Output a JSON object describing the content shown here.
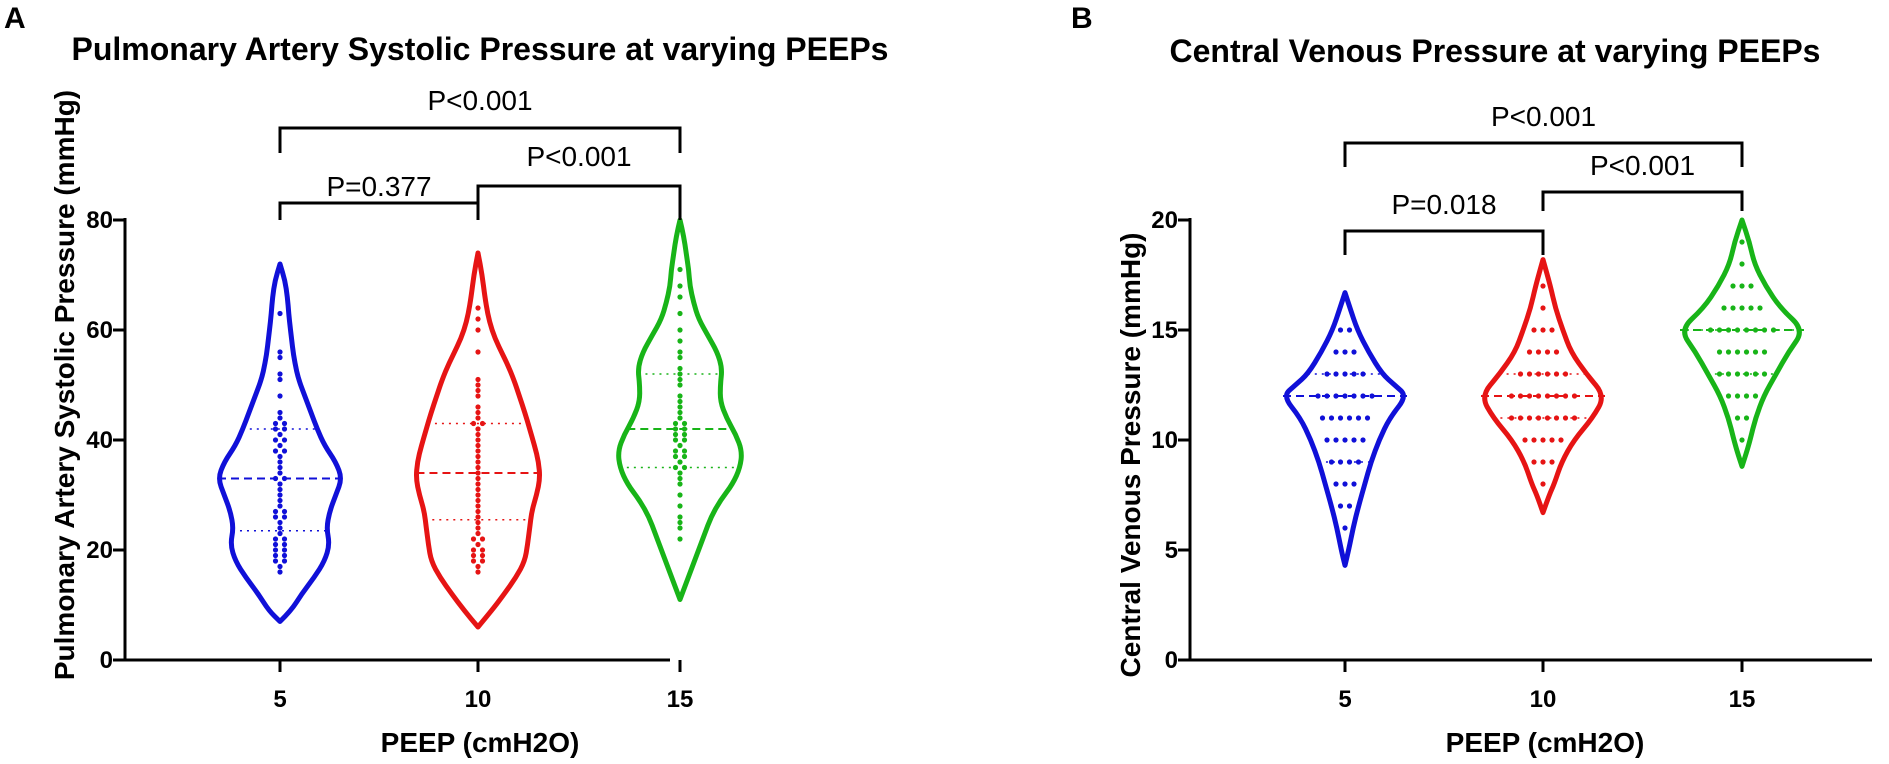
{
  "colors": {
    "blue": "#1010d8",
    "red": "#e61414",
    "green": "#18b418",
    "axis": "#000000"
  },
  "chart_data": [
    {
      "panel": "A",
      "type": "violin",
      "title": "Pulmonary Artery Systolic Pressure at varying PEEPs",
      "xlabel": "PEEP (cmH2O)",
      "ylabel": "Pulmonary Artery Systolic Pressure (mmHg)",
      "ylim": [
        0,
        80
      ],
      "yticks": [
        0,
        20,
        40,
        60,
        80
      ],
      "categories": [
        "5",
        "10",
        "15"
      ],
      "series": [
        {
          "name": "5",
          "color": "blue",
          "median": 33,
          "q1": 23.5,
          "q3": 42,
          "min": 7,
          "max": 72,
          "density": [
            [
              7,
              0
            ],
            [
              9,
              0.18
            ],
            [
              12,
              0.35
            ],
            [
              15,
              0.55
            ],
            [
              18,
              0.72
            ],
            [
              21,
              0.8
            ],
            [
              24,
              0.75
            ],
            [
              27,
              0.8
            ],
            [
              30,
              0.9
            ],
            [
              33,
              1.0
            ],
            [
              36,
              0.9
            ],
            [
              39,
              0.72
            ],
            [
              42,
              0.6
            ],
            [
              45,
              0.5
            ],
            [
              48,
              0.4
            ],
            [
              51,
              0.3
            ],
            [
              54,
              0.24
            ],
            [
              57,
              0.2
            ],
            [
              60,
              0.17
            ],
            [
              63,
              0.14
            ],
            [
              66,
              0.12
            ],
            [
              69,
              0.08
            ],
            [
              72,
              0
            ]
          ],
          "points": [
            16,
            17,
            18,
            18,
            19,
            19,
            20,
            20,
            21,
            21,
            22,
            22,
            23,
            24,
            25,
            26,
            26,
            27,
            27,
            28,
            29,
            30,
            31,
            32,
            33,
            33,
            34,
            35,
            36,
            37,
            38,
            38,
            39,
            40,
            40,
            41,
            42,
            42,
            43,
            43,
            44,
            45,
            48,
            51,
            52,
            55,
            56,
            63
          ]
        },
        {
          "name": "10",
          "color": "red",
          "median": 34,
          "q1": 25.5,
          "q3": 43,
          "min": 6,
          "max": 74,
          "density": [
            [
              6,
              0
            ],
            [
              9,
              0.2
            ],
            [
              12,
              0.38
            ],
            [
              15,
              0.55
            ],
            [
              18,
              0.68
            ],
            [
              21,
              0.72
            ],
            [
              24,
              0.75
            ],
            [
              27,
              0.78
            ],
            [
              30,
              0.85
            ],
            [
              33,
              0.9
            ],
            [
              36,
              0.88
            ],
            [
              39,
              0.82
            ],
            [
              42,
              0.75
            ],
            [
              45,
              0.68
            ],
            [
              48,
              0.6
            ],
            [
              51,
              0.52
            ],
            [
              54,
              0.42
            ],
            [
              57,
              0.3
            ],
            [
              60,
              0.2
            ],
            [
              63,
              0.14
            ],
            [
              66,
              0.1
            ],
            [
              70,
              0.06
            ],
            [
              74,
              0
            ]
          ],
          "points": [
            16,
            17,
            18,
            18,
            19,
            19,
            20,
            20,
            21,
            22,
            22,
            23,
            24,
            25,
            26,
            27,
            28,
            29,
            30,
            31,
            32,
            33,
            34,
            35,
            36,
            37,
            38,
            39,
            40,
            41,
            42,
            43,
            43,
            44,
            45,
            46,
            48,
            49,
            50,
            51,
            56,
            60,
            62,
            64
          ]
        },
        {
          "name": "15",
          "color": "green",
          "median": 42,
          "q1": 35,
          "q3": 52,
          "min": 11,
          "max": 80,
          "density": [
            [
              11,
              0
            ],
            [
              14,
              0.1
            ],
            [
              17,
              0.2
            ],
            [
              20,
              0.3
            ],
            [
              23,
              0.4
            ],
            [
              26,
              0.5
            ],
            [
              29,
              0.65
            ],
            [
              32,
              0.85
            ],
            [
              35,
              0.97
            ],
            [
              38,
              1.0
            ],
            [
              41,
              0.9
            ],
            [
              44,
              0.75
            ],
            [
              47,
              0.65
            ],
            [
              50,
              0.65
            ],
            [
              53,
              0.68
            ],
            [
              56,
              0.6
            ],
            [
              59,
              0.45
            ],
            [
              62,
              0.3
            ],
            [
              65,
              0.22
            ],
            [
              68,
              0.16
            ],
            [
              71,
              0.14
            ],
            [
              74,
              0.1
            ],
            [
              77,
              0.06
            ],
            [
              80,
              0
            ]
          ],
          "points": [
            22,
            24,
            25,
            26,
            28,
            30,
            32,
            33,
            34,
            35,
            35,
            36,
            37,
            37,
            38,
            38,
            39,
            40,
            40,
            41,
            41,
            42,
            42,
            43,
            43,
            44,
            45,
            46,
            47,
            48,
            50,
            51,
            52,
            53,
            55,
            56,
            58,
            60,
            63,
            66,
            68,
            71
          ]
        }
      ],
      "comparisons": [
        {
          "groups": [
            "5",
            "10"
          ],
          "label": "P=0.377"
        },
        {
          "groups": [
            "10",
            "15"
          ],
          "label": "P<0.001"
        },
        {
          "groups": [
            "5",
            "15"
          ],
          "label": "P<0.001"
        }
      ]
    },
    {
      "panel": "B",
      "type": "violin",
      "title": "Central Venous Pressure at varying PEEPs",
      "xlabel": "PEEP (cmH2O)",
      "ylabel": "Central Venous Pressure (mmHg)",
      "ylim": [
        0,
        20
      ],
      "yticks": [
        0,
        5,
        10,
        15,
        20
      ],
      "categories": [
        "5",
        "10",
        "15"
      ],
      "series": [
        {
          "name": "5",
          "color": "blue",
          "median": 12,
          "q1": 9,
          "q3": 13,
          "min": 4.3,
          "max": 16.7,
          "density": [
            [
              4.3,
              0
            ],
            [
              5,
              0.06
            ],
            [
              6,
              0.13
            ],
            [
              7,
              0.22
            ],
            [
              8,
              0.32
            ],
            [
              9,
              0.42
            ],
            [
              10,
              0.55
            ],
            [
              11,
              0.72
            ],
            [
              12,
              1.0
            ],
            [
              12.5,
              0.8
            ],
            [
              13,
              0.6
            ],
            [
              14,
              0.38
            ],
            [
              15,
              0.2
            ],
            [
              16,
              0.08
            ],
            [
              16.7,
              0
            ]
          ],
          "points": [
            6,
            7,
            7,
            8,
            8,
            8,
            9,
            9,
            9,
            9,
            10,
            10,
            10,
            10,
            10,
            11,
            11,
            11,
            11,
            11,
            11,
            12,
            12,
            12,
            12,
            12,
            12,
            12,
            13,
            13,
            13,
            13,
            13,
            14,
            14,
            14,
            15,
            15
          ]
        },
        {
          "name": "10",
          "color": "red",
          "median": 12,
          "q1": 11,
          "q3": 13,
          "min": 6.7,
          "max": 18.2,
          "density": [
            [
              6.7,
              0
            ],
            [
              7.5,
              0.1
            ],
            [
              8,
              0.18
            ],
            [
              9,
              0.3
            ],
            [
              10,
              0.5
            ],
            [
              11,
              0.8
            ],
            [
              12,
              1.0
            ],
            [
              13,
              0.7
            ],
            [
              14,
              0.45
            ],
            [
              15,
              0.32
            ],
            [
              16,
              0.2
            ],
            [
              17,
              0.12
            ],
            [
              18.2,
              0
            ]
          ],
          "points": [
            8,
            9,
            9,
            9,
            10,
            10,
            10,
            10,
            10,
            11,
            11,
            11,
            11,
            11,
            11,
            11,
            11,
            12,
            12,
            12,
            12,
            12,
            12,
            12,
            12,
            13,
            13,
            13,
            13,
            13,
            13,
            14,
            14,
            14,
            14,
            15,
            15,
            15,
            16,
            17
          ]
        },
        {
          "name": "15",
          "color": "green",
          "median": 15,
          "q1": 13,
          "q3": 15,
          "min": 8.8,
          "max": 20,
          "density": [
            [
              8.8,
              0
            ],
            [
              9.5,
              0.08
            ],
            [
              10,
              0.13
            ],
            [
              11,
              0.22
            ],
            [
              12,
              0.35
            ],
            [
              13,
              0.55
            ],
            [
              14,
              0.75
            ],
            [
              15,
              1.0
            ],
            [
              16,
              0.62
            ],
            [
              17,
              0.38
            ],
            [
              18,
              0.2
            ],
            [
              19,
              0.12
            ],
            [
              20,
              0
            ]
          ],
          "points": [
            10,
            11,
            11,
            12,
            12,
            12,
            12,
            13,
            13,
            13,
            13,
            13,
            13,
            14,
            14,
            14,
            14,
            14,
            14,
            15,
            15,
            15,
            15,
            15,
            15,
            15,
            15,
            16,
            16,
            16,
            16,
            16,
            17,
            17,
            17,
            18,
            19
          ]
        }
      ],
      "comparisons": [
        {
          "groups": [
            "5",
            "10"
          ],
          "label": "P=0.018"
        },
        {
          "groups": [
            "10",
            "15"
          ],
          "label": "P<0.001"
        },
        {
          "groups": [
            "5",
            "15"
          ],
          "label": "P<0.001"
        }
      ]
    }
  ]
}
